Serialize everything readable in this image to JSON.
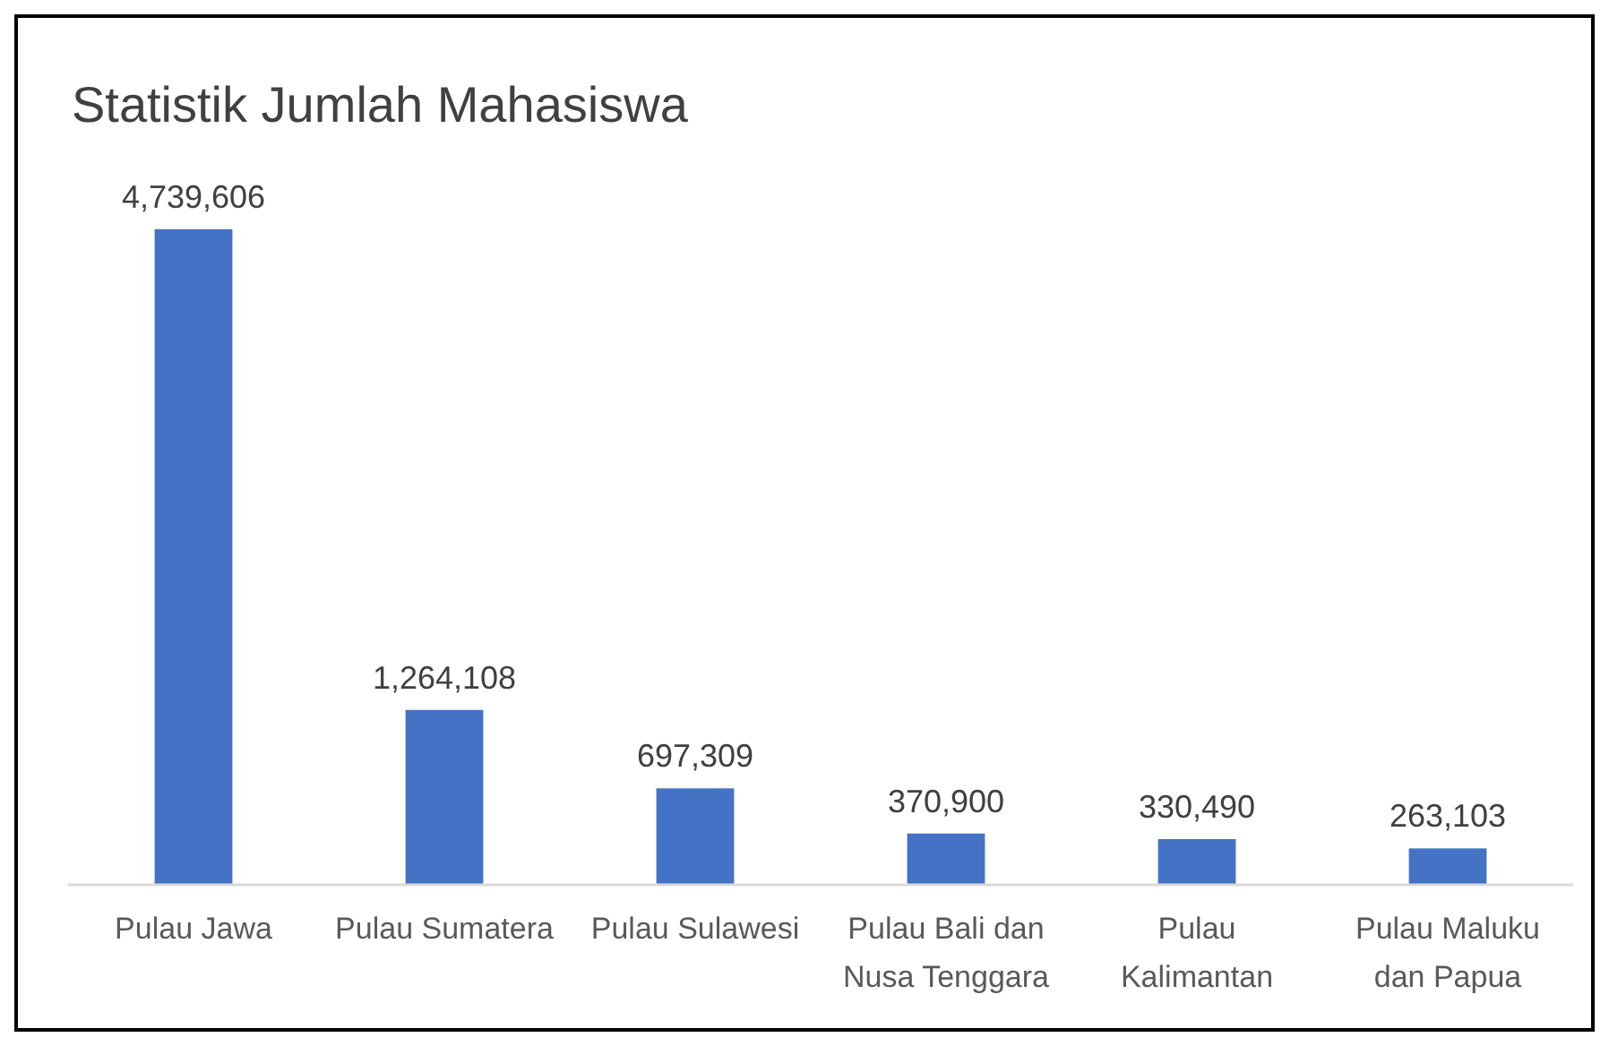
{
  "chart_data": {
    "type": "bar",
    "title": "Statistik Jumlah Mahasiswa",
    "categories": [
      "Pulau Jawa",
      "Pulau Sumatera",
      "Pulau Sulawesi",
      "Pulau Bali dan Nusa Tenggara",
      "Pulau Kalimantan",
      "Pulau Maluku dan Papua"
    ],
    "values": [
      4739606,
      1264108,
      697309,
      370900,
      330490,
      263103
    ],
    "value_labels": [
      "4,739,606",
      "1,264,108",
      "697,309",
      "370,900",
      "330,490",
      "263,103"
    ],
    "color": "#4472c4"
  }
}
